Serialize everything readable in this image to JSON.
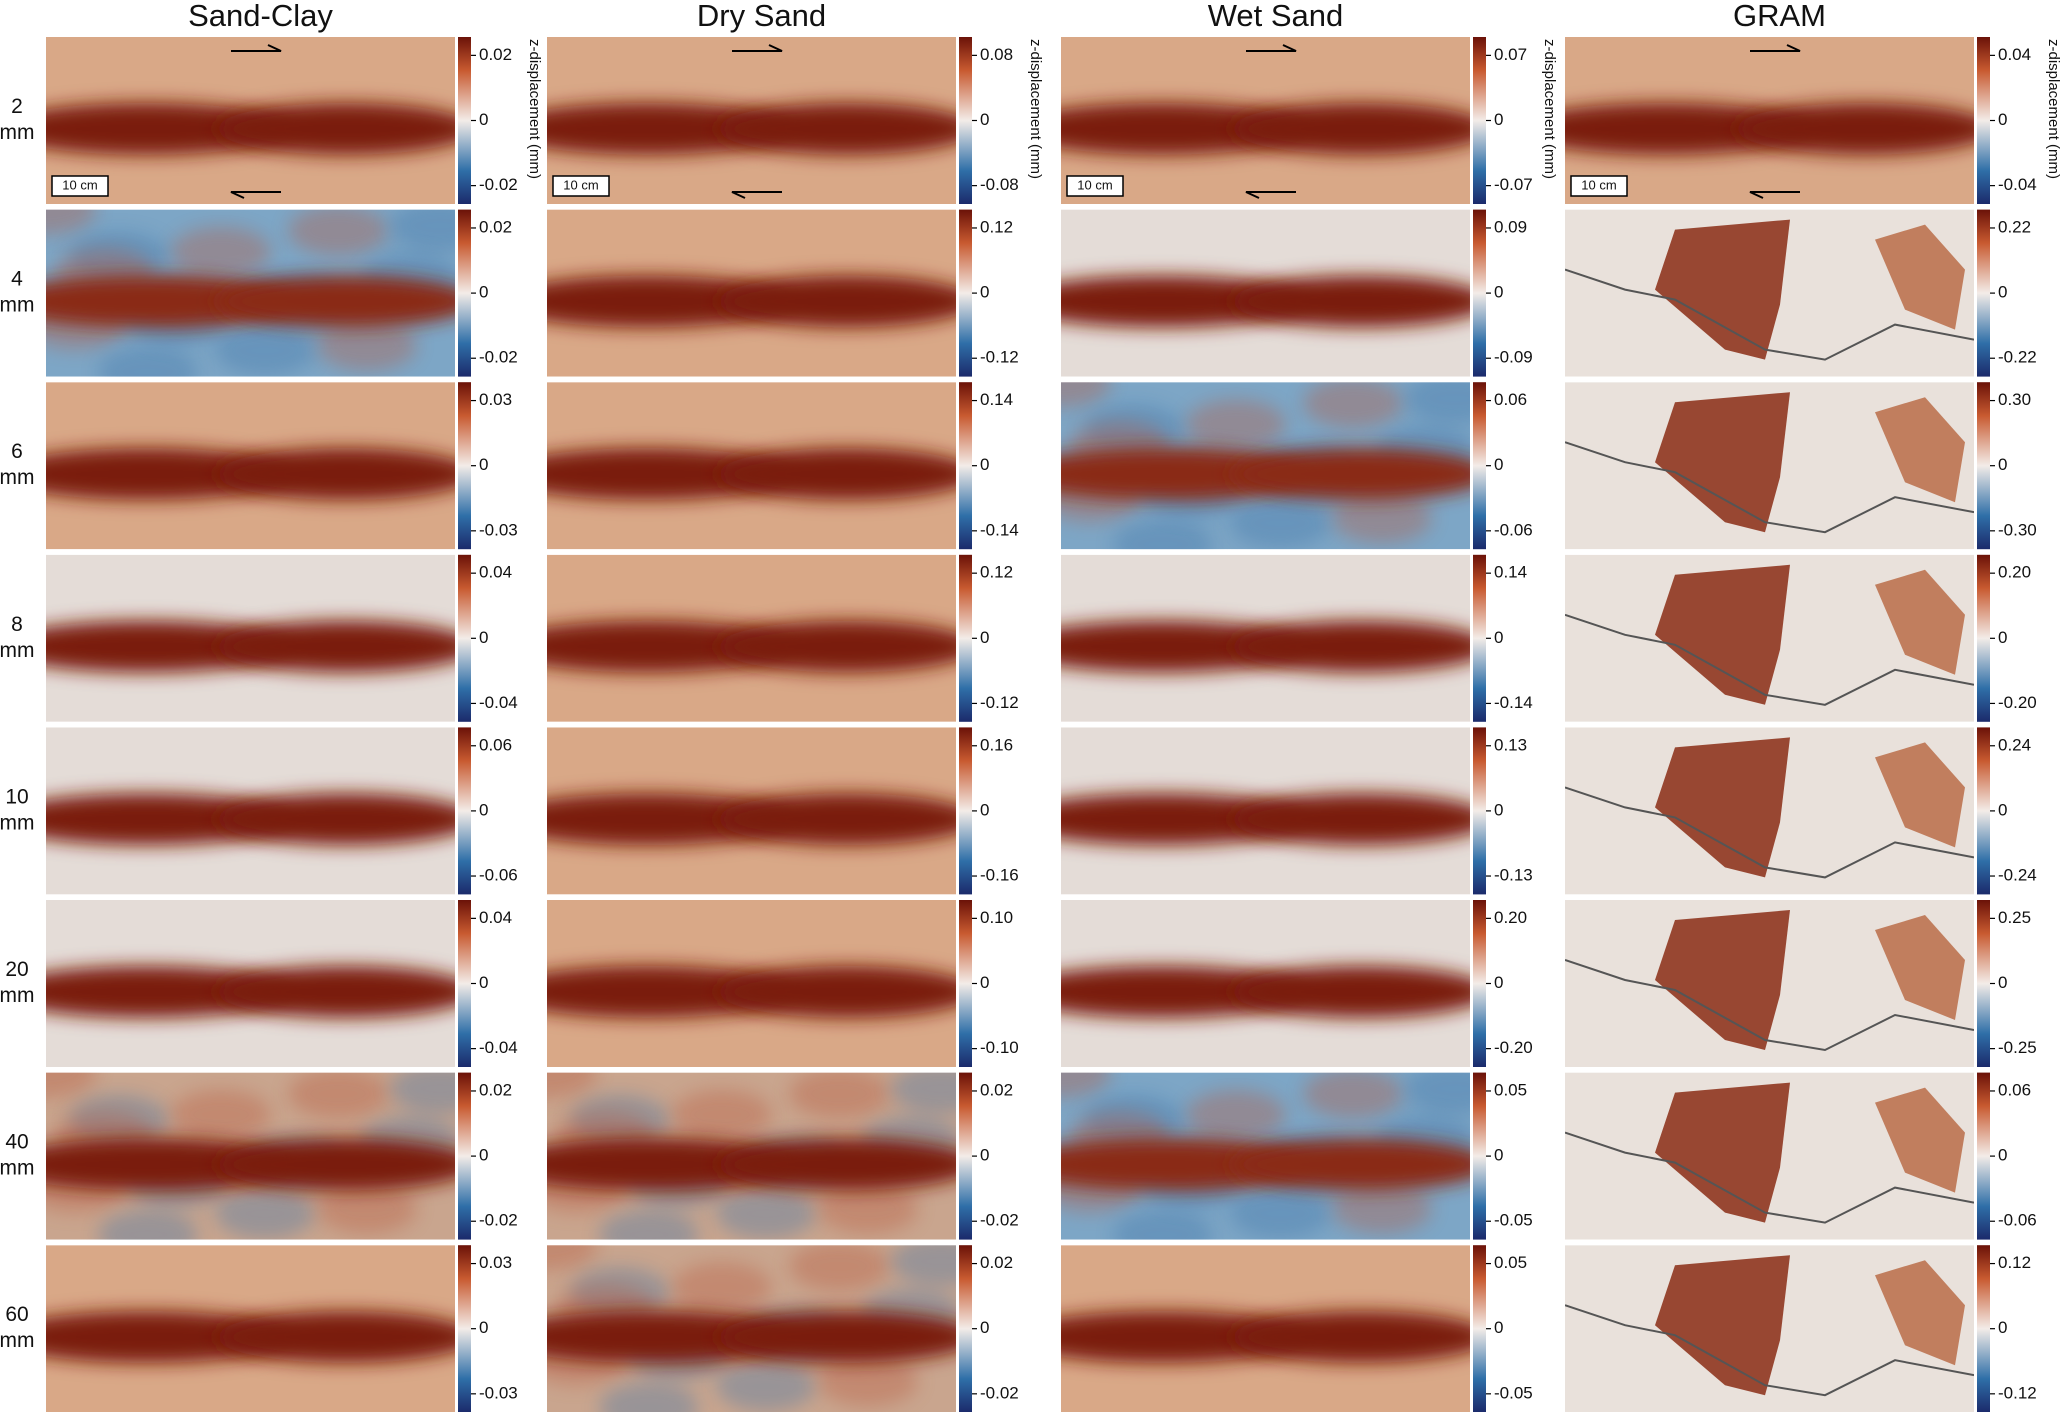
{
  "columns": [
    "Sand-Clay",
    "Dry Sand",
    "Wet Sand",
    "GRAM"
  ],
  "row_labels": [
    "2",
    "4",
    "6",
    "8",
    "10",
    "20",
    "40",
    "60"
  ],
  "row_unit": "mm",
  "colorbar_label": "z-displacement (mm)",
  "scale_bar_label": "10 cm",
  "panels": [
    [
      [
        0.02,
        0,
        -0.02
      ],
      [
        0.08,
        0,
        -0.08
      ],
      [
        0.07,
        0,
        -0.07
      ],
      [
        0.04,
        0,
        -0.04
      ]
    ],
    [
      [
        0.02,
        0,
        -0.02
      ],
      [
        0.12,
        0,
        -0.12
      ],
      [
        0.09,
        0,
        -0.09
      ],
      [
        0.22,
        0,
        -0.22
      ]
    ],
    [
      [
        0.03,
        0,
        -0.03
      ],
      [
        0.14,
        0,
        -0.14
      ],
      [
        0.06,
        0,
        -0.06
      ],
      [
        {
          "value": 0.3,
          "label": "0.30"
        },
        0,
        {
          "value": -0.3,
          "label": "-0.30"
        }
      ]
    ],
    [
      [
        0.04,
        0,
        -0.04
      ],
      [
        0.12,
        0,
        -0.12
      ],
      [
        0.14,
        0,
        -0.14
      ],
      [
        {
          "value": 0.2,
          "label": "0.20"
        },
        0,
        {
          "value": -0.2,
          "label": "-0.20"
        }
      ]
    ],
    [
      [
        0.06,
        0,
        -0.06
      ],
      [
        0.16,
        0,
        -0.16
      ],
      [
        0.13,
        0,
        -0.13
      ],
      [
        0.24,
        0,
        -0.24
      ]
    ],
    [
      [
        0.04,
        0,
        -0.04
      ],
      [
        {
          "value": 0.1,
          "label": "0.10"
        },
        0,
        {
          "value": -0.1,
          "label": "-0.10"
        }
      ],
      [
        {
          "value": 0.2,
          "label": "0.20"
        },
        0,
        {
          "value": -0.2,
          "label": "-0.20"
        }
      ],
      [
        0.25,
        0,
        -0.25
      ]
    ],
    [
      [
        0.02,
        0,
        -0.02
      ],
      [
        0.02,
        0,
        -0.02
      ],
      [
        0.05,
        0,
        -0.05
      ],
      [
        0.06,
        0,
        -0.06
      ]
    ],
    [
      [
        0.03,
        0,
        -0.03
      ],
      [
        0.02,
        0,
        -0.02
      ],
      [
        0.05,
        0,
        -0.05
      ],
      [
        0.12,
        0,
        -0.12
      ]
    ]
  ]
}
